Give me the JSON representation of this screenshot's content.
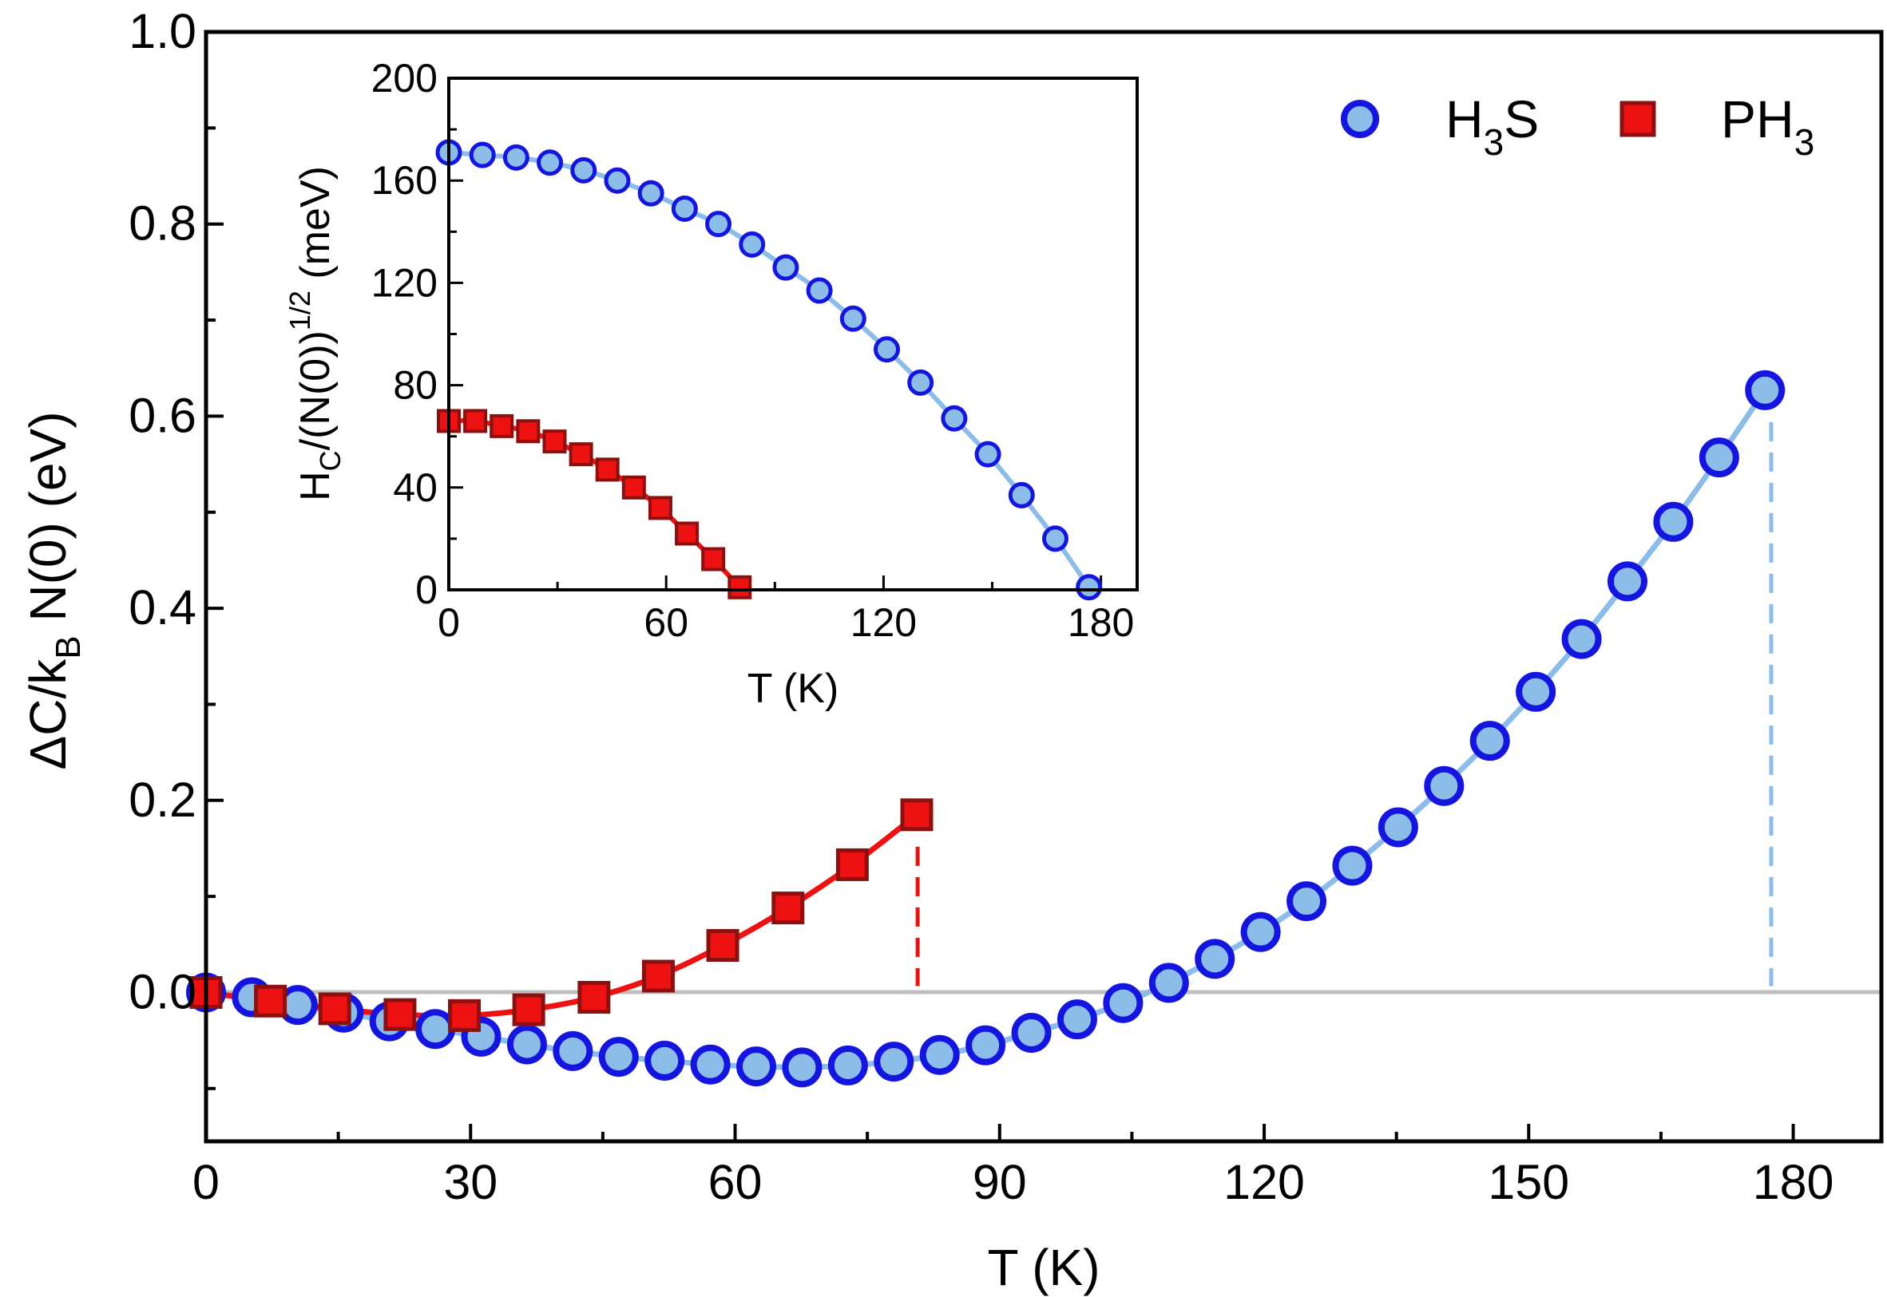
{
  "chart_data": [
    {
      "id": "main",
      "type": "line",
      "xlabel": "T (K)",
      "ylabel": "ΔC/k_B N(0) (eV)",
      "ylabel_parts": {
        "pre": "ΔC/k",
        "sub": "B",
        "post": "N(0) (eV)"
      },
      "xlim": [
        0,
        190
      ],
      "ylim": [
        -0.155,
        1.0
      ],
      "xticks": [
        0,
        30,
        60,
        90,
        120,
        150,
        180
      ],
      "xtick_labels": [
        "0",
        "30",
        "60",
        "90",
        "120",
        "150",
        "180"
      ],
      "yticks": [
        0.0,
        0.2,
        0.4,
        0.6,
        0.8,
        1.0
      ],
      "ytick_labels": [
        "0.0",
        "0.2",
        "0.4",
        "0.6",
        "0.8",
        "1.0"
      ],
      "zero_line": true,
      "legend_position": "top-right",
      "series": [
        {
          "name": "H3S",
          "label_parts": {
            "pre": "H",
            "sub": "3",
            "post": "S"
          },
          "marker": "circle",
          "color": "#1515e0",
          "fill": "#8cbde8",
          "line_color": "#8cbde8",
          "x": [
            0,
            5.2,
            10.4,
            15.6,
            20.8,
            26.0,
            31.2,
            36.4,
            41.6,
            46.8,
            52.0,
            57.2,
            62.4,
            67.6,
            72.8,
            78.0,
            83.2,
            88.4,
            93.6,
            98.8,
            104.0,
            109.2,
            114.4,
            119.6,
            124.8,
            130.0,
            135.2,
            140.4,
            145.6,
            150.8,
            156.0,
            161.2,
            166.4,
            171.6,
            176.8
          ],
          "y": [
            0.0,
            -0.005,
            -0.013,
            -0.021,
            -0.03,
            -0.038,
            -0.046,
            -0.054,
            -0.061,
            -0.067,
            -0.071,
            -0.075,
            -0.077,
            -0.078,
            -0.076,
            -0.072,
            -0.065,
            -0.055,
            -0.042,
            -0.028,
            -0.011,
            0.01,
            0.035,
            0.063,
            0.095,
            0.132,
            0.172,
            0.215,
            0.262,
            0.313,
            0.368,
            0.428,
            0.49,
            0.557,
            0.627
          ],
          "tc": 177.5
        },
        {
          "name": "PH3",
          "label_parts": {
            "pre": "PH",
            "sub": "3",
            "post": ""
          },
          "marker": "square",
          "color": "#8b1010",
          "fill": "#ee1111",
          "line_color": "#ee1111",
          "x": [
            0,
            7.3,
            14.6,
            22.0,
            29.3,
            36.6,
            44.0,
            51.3,
            58.6,
            66.0,
            73.3,
            80.6
          ],
          "y": [
            0.0,
            -0.009,
            -0.017,
            -0.023,
            -0.024,
            -0.018,
            -0.005,
            0.017,
            0.049,
            0.088,
            0.133,
            0.185
          ],
          "tc": 80.7
        }
      ]
    },
    {
      "id": "inset",
      "type": "line",
      "xlabel": "T (K)",
      "ylabel": "H_C/(N(0))^1/2 (meV)",
      "ylabel_parts": {
        "pre": "H",
        "sub": "C",
        "mid": "/(N(0))",
        "sup": "1/2",
        "post": "(meV)"
      },
      "xlim": [
        0,
        190
      ],
      "ylim": [
        0,
        200
      ],
      "xticks": [
        0,
        60,
        120,
        180
      ],
      "xtick_labels": [
        "0",
        "60",
        "120",
        "180"
      ],
      "yticks": [
        0,
        40,
        80,
        120,
        160,
        200
      ],
      "ytick_labels": [
        "0",
        "40",
        "80",
        "120",
        "160",
        "200"
      ],
      "series": [
        {
          "name": "H3S",
          "marker": "circle",
          "color": "#1515e0",
          "fill": "#8cbde8",
          "line_color": "#8cbde8",
          "x": [
            0,
            9.3,
            18.6,
            27.9,
            37.2,
            46.5,
            55.8,
            65.1,
            74.4,
            83.7,
            93.0,
            102.3,
            111.6,
            120.9,
            130.2,
            139.5,
            148.8,
            158.1,
            167.4,
            176.7
          ],
          "y": [
            171,
            170,
            169,
            167,
            164,
            160,
            155,
            149,
            143,
            135,
            126,
            117,
            106,
            94,
            81,
            67,
            53,
            37,
            20,
            1
          ]
        },
        {
          "name": "PH3",
          "marker": "square",
          "color": "#8b1010",
          "fill": "#ee1111",
          "line_color": "#ee1111",
          "x": [
            0,
            7.3,
            14.6,
            21.9,
            29.2,
            36.5,
            43.8,
            51.1,
            58.4,
            65.7,
            73.0,
            80.3
          ],
          "y": [
            66,
            66,
            64,
            62,
            58,
            53,
            47,
            40,
            32,
            22,
            12,
            1
          ]
        }
      ]
    }
  ]
}
